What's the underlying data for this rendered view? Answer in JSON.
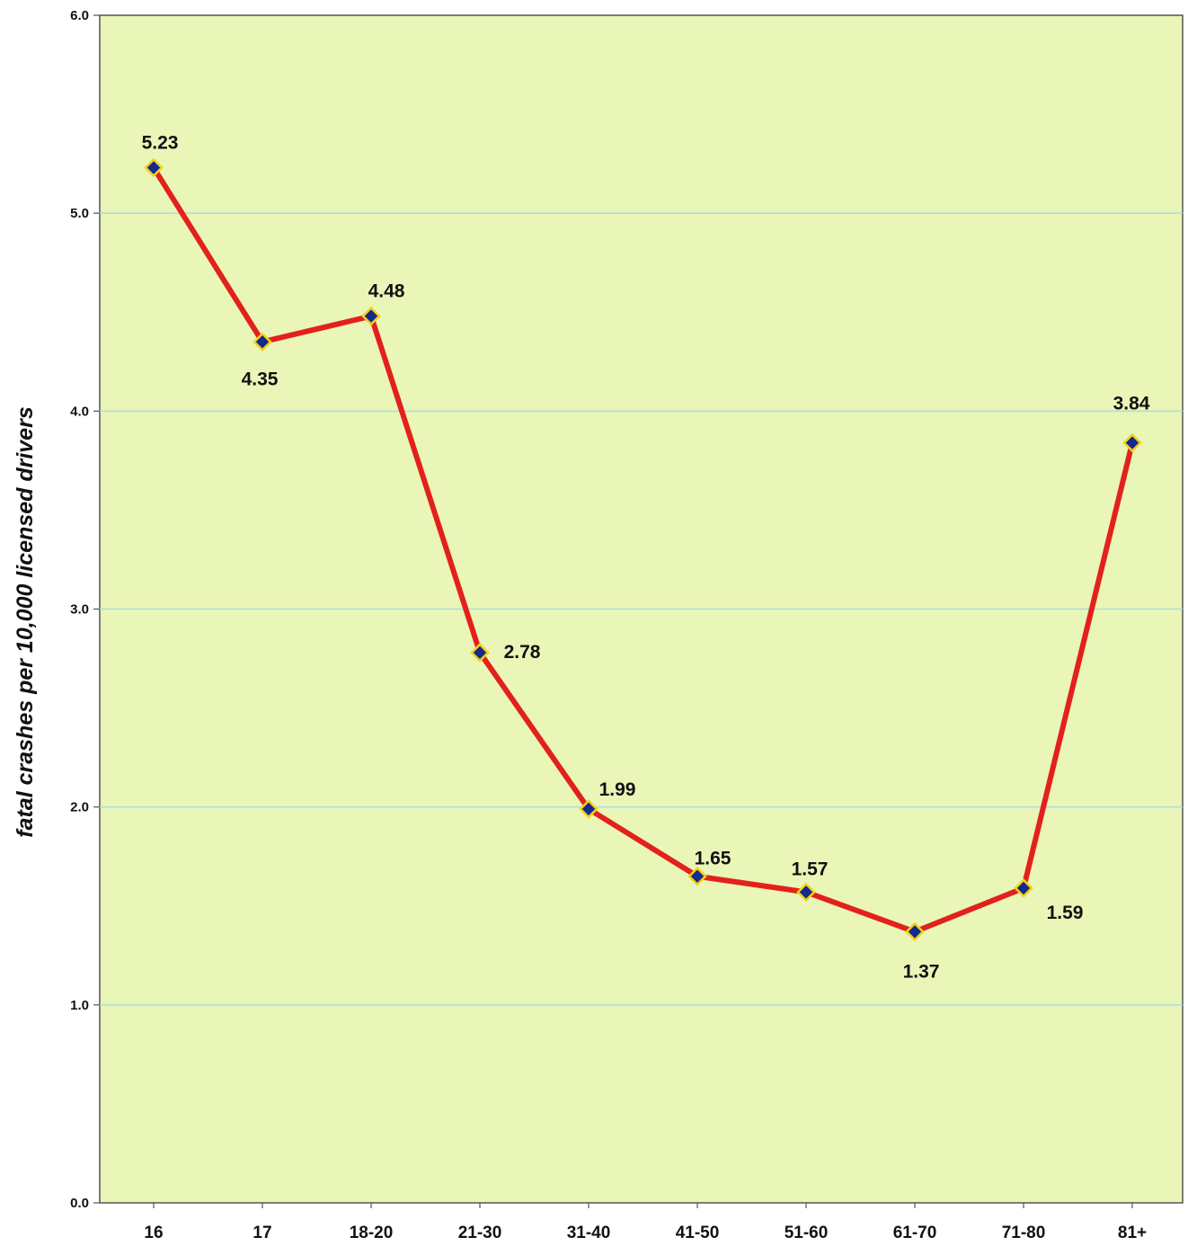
{
  "chart_data": {
    "type": "line",
    "title": "",
    "xlabel": "",
    "ylabel": "fatal crashes per 10,000 licensed drivers",
    "categories": [
      "16",
      "17",
      "18-20",
      "21-30",
      "31-40",
      "41-50",
      "51-60",
      "61-70",
      "71-80",
      "81+"
    ],
    "series": [
      {
        "values": [
          5.23,
          4.35,
          4.48,
          2.78,
          1.99,
          1.65,
          1.57,
          1.37,
          1.59,
          3.84
        ]
      }
    ],
    "data_labels": [
      "5.23",
      "4.35",
      "4.48",
      "2.78",
      "1.99",
      "1.65",
      "1.57",
      "1.37",
      "1.59",
      "3.84"
    ],
    "ylim": [
      0,
      6
    ],
    "y_ticks": [
      "0.0",
      "1.0",
      "2.0",
      "3.0",
      "4.0",
      "5.0",
      "6.0"
    ],
    "grid": true,
    "legend": "none",
    "colors": {
      "plot_background": "#eaf5b8",
      "gridline": "#a9dfd7",
      "line": "#e3211c",
      "marker_fill": "#142a8c",
      "marker_outline": "#f2d21b",
      "axis": "#555555"
    }
  }
}
